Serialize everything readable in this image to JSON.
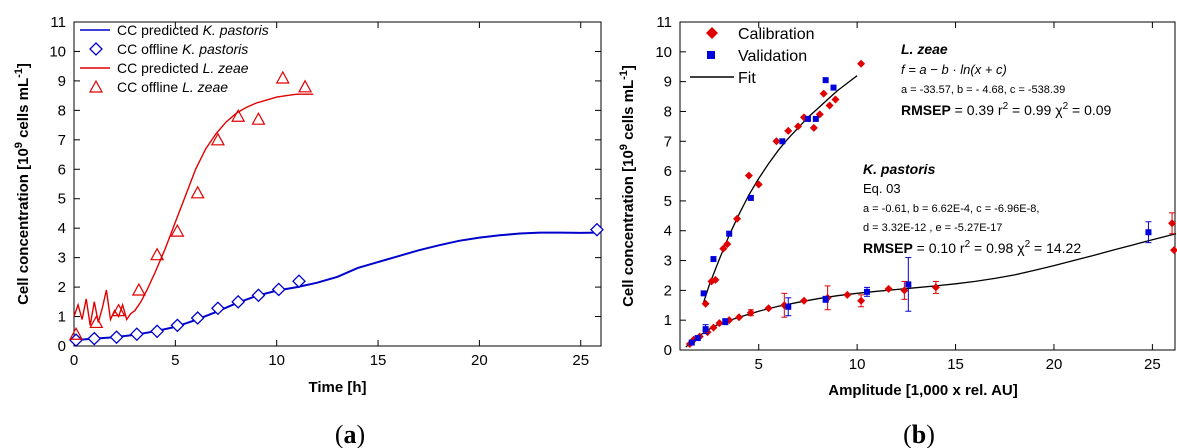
{
  "panels": {
    "a": "(a)",
    "b": "(b)"
  },
  "chart_data": [
    {
      "type": "line",
      "xlabel": "Time [h]",
      "ylabel": "Cell concentration [10^9 cells mL^-1]",
      "xlim": [
        0,
        26
      ],
      "ylim": [
        0,
        11
      ],
      "xticks": [
        0,
        5,
        10,
        15,
        20,
        25
      ],
      "yticks": [
        0,
        1,
        2,
        3,
        4,
        5,
        6,
        7,
        8,
        9,
        10,
        11
      ],
      "legend_position": "top-left",
      "legend": [
        {
          "prefix": "CC predicted ",
          "species": "K. pastoris",
          "style": "line",
          "color": "#0000cc"
        },
        {
          "prefix": "CC offline ",
          "species": "K. pastoris",
          "style": "diamond",
          "color": "#0000cc"
        },
        {
          "prefix": "CC predicted ",
          "species": "L. zeae",
          "style": "line",
          "color": "#e00000"
        },
        {
          "prefix": "CC offline  ",
          "species": "L. zeae",
          "style": "triangle",
          "color": "#e00000"
        }
      ],
      "series": [
        {
          "name": "CC predicted K. pastoris",
          "kind": "line",
          "color": "#0000cc",
          "x": [
            0,
            1,
            2,
            3,
            4,
            5,
            6,
            7,
            8,
            9,
            10,
            11,
            12,
            13,
            14,
            15,
            16,
            17,
            18,
            19,
            20,
            21,
            22,
            23,
            24,
            25,
            25.8
          ],
          "y": [
            0.2,
            0.25,
            0.3,
            0.38,
            0.5,
            0.65,
            0.88,
            1.15,
            1.45,
            1.7,
            1.88,
            2.0,
            2.15,
            2.35,
            2.65,
            2.85,
            3.05,
            3.25,
            3.42,
            3.57,
            3.68,
            3.76,
            3.82,
            3.85,
            3.85,
            3.84,
            3.85
          ]
        },
        {
          "name": "CC offline K. pastoris",
          "kind": "marker",
          "marker": "diamond",
          "color": "#0000cc",
          "x": [
            0.1,
            1.0,
            2.1,
            3.1,
            4.1,
            5.1,
            6.1,
            7.1,
            8.1,
            9.1,
            10.1,
            11.1,
            25.8
          ],
          "y": [
            0.2,
            0.25,
            0.3,
            0.4,
            0.5,
            0.7,
            0.95,
            1.28,
            1.5,
            1.72,
            1.92,
            2.2,
            3.95
          ]
        },
        {
          "name": "CC predicted L. zeae",
          "kind": "line",
          "color": "#e00000",
          "x": [
            0,
            0.2,
            0.4,
            0.6,
            0.8,
            1.0,
            1.2,
            1.4,
            1.6,
            1.8,
            2.0,
            2.2,
            2.4,
            2.6,
            2.8,
            3.0,
            3.3,
            3.6,
            4.0,
            4.5,
            5.0,
            5.5,
            6.0,
            6.5,
            7.0,
            7.5,
            8.0,
            8.5,
            9.0,
            9.5,
            10.0,
            10.5,
            11.0,
            11.5,
            11.8
          ],
          "y": [
            1.0,
            1.4,
            0.9,
            1.6,
            0.7,
            1.5,
            0.8,
            1.3,
            1.9,
            0.9,
            1.2,
            1.0,
            1.4,
            0.9,
            1.1,
            1.2,
            1.5,
            1.9,
            2.5,
            3.3,
            4.2,
            5.1,
            6.0,
            6.7,
            7.2,
            7.6,
            7.9,
            8.1,
            8.25,
            8.35,
            8.45,
            8.5,
            8.55,
            8.55,
            8.55
          ]
        },
        {
          "name": "CC offline L. zeae",
          "kind": "marker",
          "marker": "triangle",
          "color": "#e00000",
          "x": [
            0.1,
            1.1,
            2.2,
            3.2,
            4.1,
            5.1,
            6.1,
            7.1,
            8.1,
            9.1,
            10.3,
            11.4
          ],
          "y": [
            0.4,
            0.8,
            1.2,
            1.9,
            3.1,
            3.9,
            5.2,
            7.0,
            7.8,
            7.7,
            9.1,
            8.8
          ]
        }
      ]
    },
    {
      "type": "scatter",
      "xlabel": "Amplitude [1,000 x rel. AU]",
      "ylabel": "Cell concentration [10^9 cells mL^-1]",
      "xlim": [
        1,
        26.2
      ],
      "ylim": [
        0,
        11
      ],
      "xticks": [
        5,
        10,
        15,
        20,
        25
      ],
      "yticks": [
        0,
        1,
        2,
        3,
        4,
        5,
        6,
        7,
        8,
        9,
        10,
        11
      ],
      "legend_position": "top-left",
      "legend": [
        {
          "label": "Calibration",
          "style": "diamond",
          "color": "#e00000"
        },
        {
          "label": "Validation",
          "style": "square",
          "color": "#0000dd"
        },
        {
          "label": "Fit",
          "style": "line",
          "color": "#000000"
        }
      ],
      "annotations": {
        "lzeae": {
          "title": "L. zeae",
          "formula": "f = a − b · ln(x + c)",
          "params": "a = -33.57, b = - 4.68, c = -538.39",
          "rmsep_label": "RMSEP",
          "rmsep_value": " = 0.39   r",
          "r2_value": " = 0.99  χ",
          "chi2_value": " = 0.09"
        },
        "kpastoris": {
          "title": "K. pastoris",
          "eq": "Eq. 03",
          "params1": "a = -0.61, b = 6.62E-4, c = -6.96E-8,",
          "params2": "d = 3.32E-12 , e = -5.27E-17",
          "rmsep_label": "RMSEP",
          "rmsep_value": " = 0.10   r",
          "r2_value": " = 0.98  χ",
          "chi2_value": " = 14.22"
        }
      },
      "series": [
        {
          "name": "Calibration",
          "species": "L. zeae",
          "marker": "diamond",
          "color": "#e00000",
          "x": [
            2.3,
            2.6,
            2.8,
            3.2,
            3.4,
            3.9,
            4.5,
            5.0,
            5.9,
            6.5,
            7.0,
            7.3,
            7.8,
            8.1,
            8.3,
            8.6,
            8.9,
            10.2
          ],
          "y": [
            1.55,
            2.3,
            2.35,
            3.4,
            3.55,
            4.4,
            5.85,
            5.55,
            7.0,
            7.35,
            7.5,
            7.8,
            7.45,
            7.9,
            8.6,
            8.2,
            8.4,
            9.6
          ]
        },
        {
          "name": "Validation",
          "species": "L. zeae",
          "marker": "square",
          "color": "#0000dd",
          "x": [
            2.2,
            2.7,
            3.5,
            4.6,
            6.2,
            7.5,
            7.9,
            8.4,
            8.8
          ],
          "y": [
            1.9,
            3.05,
            3.9,
            5.1,
            7.0,
            7.75,
            7.75,
            9.05,
            8.8
          ]
        },
        {
          "name": "Calibration",
          "species": "K. pastoris",
          "marker": "diamond",
          "color": "#e00000",
          "x": [
            1.5,
            1.7,
            2.0,
            2.4,
            2.7,
            3.0,
            3.5,
            4.0,
            4.6,
            5.5,
            6.3,
            7.3,
            8.5,
            9.5,
            10.2,
            11.6,
            12.4,
            14.0,
            26.0,
            26.1
          ],
          "y": [
            0.2,
            0.35,
            0.45,
            0.6,
            0.75,
            0.9,
            1.0,
            1.1,
            1.25,
            1.4,
            1.5,
            1.65,
            1.75,
            1.85,
            1.65,
            2.05,
            2.0,
            2.1,
            4.25,
            3.35
          ],
          "err": [
            0,
            0,
            0,
            0,
            0,
            0,
            0,
            0,
            0.1,
            0,
            0.4,
            0,
            0.4,
            0,
            0.2,
            0,
            0.3,
            0.2,
            0.35,
            0
          ]
        },
        {
          "name": "Validation",
          "species": "K. pastoris",
          "marker": "square",
          "color": "#0000dd",
          "x": [
            1.6,
            1.9,
            2.3,
            3.3,
            6.5,
            8.4,
            10.5,
            12.6,
            24.8
          ],
          "y": [
            0.25,
            0.4,
            0.7,
            0.95,
            1.45,
            1.7,
            1.95,
            2.2,
            3.95
          ],
          "err": [
            0,
            0,
            0.15,
            0.1,
            0.3,
            0.1,
            0.15,
            0.9,
            0.35
          ]
        },
        {
          "name": "Fit",
          "species": "L. zeae",
          "kind": "line",
          "color": "#000000",
          "x": [
            2.2,
            2.5,
            3.0,
            3.5,
            4.0,
            4.5,
            5.0,
            5.5,
            6.0,
            6.5,
            7.0,
            7.5,
            8.0,
            8.5,
            9.0,
            9.5,
            10.0
          ],
          "y": [
            1.6,
            2.2,
            3.05,
            3.85,
            4.55,
            5.2,
            5.75,
            6.25,
            6.7,
            7.1,
            7.45,
            7.8,
            8.1,
            8.4,
            8.7,
            8.95,
            9.2
          ]
        },
        {
          "name": "Fit",
          "species": "K. pastoris",
          "kind": "line",
          "color": "#000000",
          "x": [
            1.3,
            1.8,
            2.5,
            3.0,
            4.0,
            5.0,
            6.0,
            7.0,
            8.0,
            9.0,
            10.0,
            11.0,
            12.0,
            13.0,
            14.0,
            15.0,
            16.0,
            17.0,
            18.0,
            19.0,
            20.0,
            21.0,
            22.0,
            23.0,
            24.0,
            25.0,
            26.2
          ],
          "y": [
            0.1,
            0.4,
            0.7,
            0.88,
            1.1,
            1.3,
            1.47,
            1.6,
            1.72,
            1.82,
            1.9,
            1.97,
            2.03,
            2.09,
            2.15,
            2.22,
            2.3,
            2.4,
            2.52,
            2.67,
            2.83,
            3.0,
            3.17,
            3.35,
            3.52,
            3.7,
            3.9
          ]
        }
      ]
    }
  ]
}
